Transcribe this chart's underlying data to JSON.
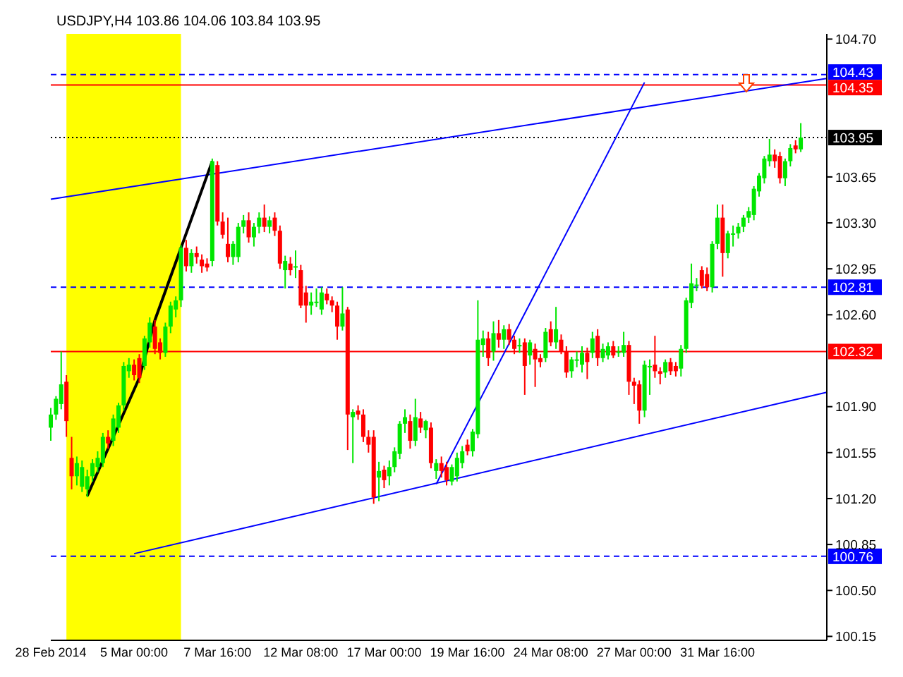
{
  "chart_data": {
    "type": "candlestick",
    "title": "USDJPY,H4 103.86 104.06 103.84 103.95",
    "categories": [
      "28 Feb 2014",
      null,
      null,
      null,
      null,
      null,
      null,
      null,
      null,
      null,
      null,
      null,
      null,
      null,
      null,
      null,
      "5 Mar 00:00",
      null,
      null,
      null,
      null,
      null,
      null,
      null,
      null,
      null,
      null,
      null,
      null,
      null,
      null,
      null,
      "7 Mar 16:00",
      null,
      null,
      null,
      null,
      null,
      null,
      null,
      null,
      null,
      null,
      null,
      null,
      null,
      null,
      null,
      "12 Mar 08:00",
      null,
      null,
      null,
      null,
      null,
      null,
      null,
      null,
      null,
      null,
      null,
      null,
      null,
      null,
      null,
      "17 Mar 00:00",
      null,
      null,
      null,
      null,
      null,
      null,
      null,
      null,
      null,
      null,
      null,
      null,
      null,
      null,
      null,
      "19 Mar 16:00",
      null,
      null,
      null,
      null,
      null,
      null,
      null,
      null,
      null,
      null,
      null,
      null,
      null,
      null,
      null,
      "24 Mar 08:00",
      null,
      null,
      null,
      null,
      null,
      null,
      null,
      null,
      null,
      null,
      null,
      null,
      null,
      null,
      null,
      "27 Mar 00:00",
      null,
      null,
      null,
      null,
      null,
      null,
      null,
      null,
      null,
      null,
      null,
      null,
      null,
      null,
      null,
      "31 Mar 16:00",
      null,
      null,
      null,
      null,
      null,
      null,
      null,
      null,
      null,
      null,
      null,
      null,
      null,
      null,
      null,
      null,
      null,
      null,
      null,
      null,
      null
    ],
    "ohlc": [
      [
        101.74,
        101.89,
        101.64,
        101.84
      ],
      [
        101.84,
        101.98,
        101.8,
        101.96
      ],
      [
        101.92,
        102.32,
        101.88,
        102.07
      ],
      [
        102.09,
        102.14,
        101.67,
        101.79
      ],
      [
        101.51,
        101.67,
        101.27,
        101.37
      ],
      [
        101.37,
        101.52,
        101.3,
        101.47
      ],
      [
        101.29,
        101.49,
        101.25,
        101.44
      ],
      [
        101.27,
        101.42,
        101.21,
        101.37
      ],
      [
        101.37,
        101.5,
        101.33,
        101.47
      ],
      [
        101.44,
        101.56,
        101.4,
        101.51
      ],
      [
        101.47,
        101.7,
        101.44,
        101.67
      ],
      [
        101.67,
        101.72,
        101.58,
        101.62
      ],
      [
        101.64,
        101.84,
        101.6,
        101.81
      ],
      [
        101.74,
        101.93,
        101.7,
        101.91
      ],
      [
        101.91,
        102.24,
        101.87,
        102.21
      ],
      [
        102.17,
        102.27,
        102.12,
        102.22
      ],
      [
        102.22,
        102.26,
        102.1,
        102.14
      ],
      [
        102.27,
        102.3,
        102.08,
        102.12
      ],
      [
        102.21,
        102.44,
        102.18,
        102.42
      ],
      [
        102.39,
        102.58,
        102.35,
        102.54
      ],
      [
        102.51,
        102.56,
        102.3,
        102.34
      ],
      [
        102.39,
        102.42,
        102.26,
        102.31
      ],
      [
        102.31,
        102.54,
        102.28,
        102.51
      ],
      [
        102.51,
        102.7,
        102.46,
        102.67
      ],
      [
        102.64,
        102.74,
        102.58,
        102.71
      ],
      [
        102.71,
        103.13,
        102.66,
        103.11
      ],
      [
        103.11,
        103.17,
        102.93,
        102.97
      ],
      [
        102.97,
        103.1,
        102.92,
        103.07
      ],
      [
        103.07,
        103.12,
        102.99,
        103.04
      ],
      [
        103.02,
        103.06,
        102.92,
        102.97
      ],
      [
        102.99,
        103.03,
        102.93,
        102.96
      ],
      [
        103.01,
        103.79,
        102.97,
        103.77
      ],
      [
        103.74,
        103.77,
        103.28,
        103.31
      ],
      [
        103.31,
        103.38,
        103.18,
        103.21
      ],
      [
        103.14,
        103.34,
        103.0,
        103.04
      ],
      [
        103.04,
        103.16,
        102.98,
        103.14
      ],
      [
        103.04,
        103.3,
        103.0,
        103.27
      ],
      [
        103.27,
        103.36,
        103.22,
        103.32
      ],
      [
        103.32,
        103.38,
        103.15,
        103.19
      ],
      [
        103.19,
        103.3,
        103.12,
        103.27
      ],
      [
        103.27,
        103.38,
        103.22,
        103.34
      ],
      [
        103.34,
        103.44,
        103.23,
        103.27
      ],
      [
        103.27,
        103.35,
        103.22,
        103.32
      ],
      [
        103.34,
        103.38,
        103.2,
        103.24
      ],
      [
        103.24,
        103.28,
        102.95,
        102.99
      ],
      [
        102.94,
        103.05,
        102.8,
        103.01
      ],
      [
        102.99,
        103.04,
        102.9,
        102.94
      ],
      [
        102.97,
        103.09,
        102.88,
        102.97
      ],
      [
        102.94,
        102.98,
        102.65,
        102.67
      ],
      [
        102.77,
        102.82,
        102.54,
        102.67
      ],
      [
        102.67,
        102.77,
        102.6,
        102.7
      ],
      [
        102.7,
        102.8,
        102.66,
        102.7
      ],
      [
        102.64,
        102.81,
        102.6,
        102.77
      ],
      [
        102.76,
        102.8,
        102.68,
        102.71
      ],
      [
        102.71,
        102.74,
        102.62,
        102.67
      ],
      [
        102.67,
        102.7,
        102.41,
        102.51
      ],
      [
        102.51,
        102.81,
        102.48,
        102.61
      ],
      [
        102.64,
        102.66,
        101.57,
        101.84
      ],
      [
        101.82,
        101.88,
        101.47,
        101.86
      ],
      [
        101.87,
        101.91,
        101.8,
        101.84
      ],
      [
        101.84,
        101.88,
        101.63,
        101.67
      ],
      [
        101.67,
        101.72,
        101.55,
        101.61
      ],
      [
        101.67,
        101.72,
        101.16,
        101.21
      ],
      [
        101.36,
        101.48,
        101.18,
        101.41
      ],
      [
        101.42,
        101.45,
        101.28,
        101.34
      ],
      [
        101.37,
        101.49,
        101.3,
        101.44
      ],
      [
        101.44,
        101.59,
        101.4,
        101.56
      ],
      [
        101.54,
        101.79,
        101.5,
        101.77
      ],
      [
        101.77,
        101.88,
        101.7,
        101.82
      ],
      [
        101.79,
        101.84,
        101.58,
        101.64
      ],
      [
        101.64,
        101.96,
        101.6,
        101.82
      ],
      [
        101.81,
        101.86,
        101.7,
        101.74
      ],
      [
        101.72,
        101.8,
        101.66,
        101.79
      ],
      [
        101.74,
        101.78,
        101.43,
        101.47
      ],
      [
        101.41,
        101.5,
        101.35,
        101.47
      ],
      [
        101.47,
        101.52,
        101.36,
        101.41
      ],
      [
        101.44,
        101.48,
        101.3,
        101.34
      ],
      [
        101.33,
        101.46,
        101.3,
        101.44
      ],
      [
        101.37,
        101.55,
        101.33,
        101.51
      ],
      [
        101.47,
        101.6,
        101.43,
        101.56
      ],
      [
        101.61,
        101.65,
        101.53,
        101.56
      ],
      [
        101.56,
        101.73,
        101.52,
        101.71
      ],
      [
        101.69,
        102.71,
        101.66,
        102.41
      ],
      [
        102.37,
        102.48,
        102.28,
        102.42
      ],
      [
        102.42,
        102.47,
        102.21,
        102.27
      ],
      [
        102.32,
        102.55,
        102.25,
        102.46
      ],
      [
        102.46,
        102.56,
        102.35,
        102.41
      ],
      [
        102.41,
        102.52,
        102.34,
        102.49
      ],
      [
        102.49,
        102.53,
        102.37,
        102.41
      ],
      [
        102.41,
        102.44,
        102.3,
        102.34
      ],
      [
        102.37,
        102.42,
        102.31,
        102.37
      ],
      [
        102.39,
        102.42,
        101.99,
        102.21
      ],
      [
        102.29,
        102.41,
        102.22,
        102.39
      ],
      [
        102.34,
        102.38,
        102.05,
        102.26
      ],
      [
        102.27,
        102.3,
        102.2,
        102.24
      ],
      [
        102.27,
        102.5,
        102.24,
        102.47
      ],
      [
        102.49,
        102.55,
        102.36,
        102.39
      ],
      [
        102.39,
        102.66,
        102.34,
        102.49
      ],
      [
        102.41,
        102.45,
        102.3,
        102.32
      ],
      [
        102.32,
        102.36,
        102.12,
        102.16
      ],
      [
        102.17,
        102.28,
        102.12,
        102.26
      ],
      [
        102.26,
        102.32,
        102.2,
        102.26
      ],
      [
        102.22,
        102.36,
        102.16,
        102.31
      ],
      [
        102.31,
        102.35,
        102.11,
        102.24
      ],
      [
        102.31,
        102.47,
        102.27,
        102.42
      ],
      [
        102.44,
        102.49,
        102.21,
        102.27
      ],
      [
        102.27,
        102.38,
        102.24,
        102.34
      ],
      [
        102.29,
        102.39,
        102.26,
        102.36
      ],
      [
        102.36,
        102.4,
        102.27,
        102.29
      ],
      [
        102.32,
        102.36,
        102.28,
        102.32
      ],
      [
        102.31,
        102.47,
        102.28,
        102.37
      ],
      [
        102.37,
        102.4,
        101.99,
        102.09
      ],
      [
        102.09,
        102.12,
        101.92,
        102.06
      ],
      [
        102.07,
        102.1,
        101.77,
        101.87
      ],
      [
        101.87,
        102.25,
        101.82,
        102.22
      ],
      [
        102.21,
        102.26,
        101.99,
        102.21
      ],
      [
        102.22,
        102.44,
        102.12,
        102.17
      ],
      [
        102.17,
        102.2,
        102.07,
        102.15
      ],
      [
        102.16,
        102.26,
        102.12,
        102.24
      ],
      [
        102.24,
        102.27,
        102.14,
        102.17
      ],
      [
        102.21,
        102.24,
        102.13,
        102.17
      ],
      [
        102.19,
        102.37,
        102.13,
        102.34
      ],
      [
        102.34,
        102.73,
        102.31,
        102.71
      ],
      [
        102.69,
        102.99,
        102.65,
        102.84
      ],
      [
        102.83,
        102.88,
        102.78,
        102.83
      ],
      [
        102.94,
        102.97,
        102.8,
        102.82
      ],
      [
        102.91,
        102.96,
        102.78,
        102.81
      ],
      [
        102.81,
        103.16,
        102.77,
        103.14
      ],
      [
        103.14,
        103.44,
        103.1,
        103.34
      ],
      [
        103.34,
        103.44,
        102.89,
        103.07
      ],
      [
        103.07,
        103.24,
        103.03,
        103.22
      ],
      [
        103.22,
        103.28,
        103.12,
        103.22
      ],
      [
        103.22,
        103.3,
        103.18,
        103.27
      ],
      [
        103.27,
        103.36,
        103.23,
        103.34
      ],
      [
        103.34,
        103.42,
        103.3,
        103.39
      ],
      [
        103.36,
        103.58,
        103.32,
        103.56
      ],
      [
        103.54,
        103.68,
        103.5,
        103.66
      ],
      [
        103.64,
        103.81,
        103.6,
        103.79
      ],
      [
        103.77,
        103.94,
        103.73,
        103.82
      ],
      [
        103.82,
        103.86,
        103.72,
        103.77
      ],
      [
        103.81,
        103.84,
        103.6,
        103.64
      ],
      [
        103.64,
        103.79,
        103.58,
        103.77
      ],
      [
        103.77,
        103.9,
        103.73,
        103.87
      ],
      [
        103.89,
        103.93,
        103.83,
        103.86
      ],
      [
        103.86,
        104.06,
        103.84,
        103.95
      ],
      null,
      null,
      null,
      null,
      null
    ],
    "series": [
      {
        "type": "line",
        "color": "#0000ff",
        "line_style": "solid",
        "values": [
          103.48,
          null,
          null,
          null,
          null,
          null,
          null,
          null,
          null,
          null,
          null,
          null,
          null,
          null,
          null,
          null,
          null,
          null,
          null,
          null,
          null,
          null,
          null,
          null,
          null,
          null,
          null,
          null,
          null,
          null,
          null,
          null,
          null,
          null,
          null,
          null,
          null,
          null,
          null,
          null,
          null,
          null,
          null,
          null,
          null,
          null,
          null,
          null,
          null,
          null,
          null,
          null,
          null,
          null,
          null,
          null,
          null,
          null,
          null,
          null,
          null,
          null,
          null,
          null,
          null,
          null,
          null,
          null,
          null,
          null,
          null,
          null,
          null,
          null,
          null,
          null,
          null,
          null,
          null,
          null,
          null,
          null,
          null,
          null,
          null,
          null,
          null,
          null,
          null,
          null,
          null,
          null,
          null,
          null,
          null,
          null,
          null,
          null,
          null,
          null,
          null,
          null,
          null,
          null,
          null,
          null,
          null,
          null,
          null,
          null,
          null,
          null,
          null,
          null,
          null,
          null,
          null,
          null,
          null,
          null,
          null,
          null,
          null,
          null,
          null,
          null,
          null,
          null,
          null,
          null,
          null,
          null,
          null,
          null,
          null,
          null,
          null,
          null,
          null,
          null,
          null,
          null,
          null,
          null,
          null,
          null,
          null,
          null,
          null,
          104.4
        ]
      },
      {
        "type": "line",
        "color": "#0000ff",
        "line_style": "solid",
        "values": [
          null,
          null,
          null,
          null,
          null,
          null,
          null,
          null,
          null,
          null,
          null,
          null,
          null,
          null,
          null,
          null,
          100.78,
          null,
          null,
          null,
          null,
          null,
          null,
          null,
          null,
          null,
          null,
          null,
          null,
          null,
          null,
          null,
          null,
          null,
          null,
          null,
          null,
          null,
          null,
          null,
          null,
          null,
          null,
          null,
          null,
          null,
          null,
          null,
          null,
          null,
          null,
          null,
          null,
          null,
          null,
          null,
          null,
          null,
          null,
          null,
          null,
          null,
          null,
          null,
          null,
          null,
          null,
          null,
          null,
          null,
          null,
          null,
          null,
          null,
          null,
          null,
          null,
          null,
          null,
          null,
          null,
          null,
          null,
          null,
          null,
          null,
          null,
          null,
          null,
          null,
          null,
          null,
          null,
          null,
          null,
          null,
          null,
          null,
          null,
          null,
          null,
          null,
          null,
          null,
          null,
          null,
          null,
          null,
          null,
          null,
          null,
          null,
          null,
          null,
          null,
          null,
          null,
          null,
          null,
          null,
          null,
          null,
          null,
          null,
          null,
          null,
          null,
          null,
          null,
          null,
          null,
          null,
          null,
          null,
          null,
          null,
          null,
          null,
          null,
          null,
          null,
          null,
          null,
          null,
          null,
          null,
          null,
          null,
          null,
          102.01
        ]
      },
      {
        "type": "line",
        "color": "#000000",
        "line_style": "solid",
        "values": [
          null,
          null,
          null,
          null,
          null,
          null,
          null,
          101.22,
          null,
          null,
          null,
          null,
          null,
          null,
          null,
          null,
          null,
          102.12,
          null,
          null,
          102.56,
          null,
          null,
          null,
          null,
          null,
          null,
          null,
          null,
          null,
          null,
          103.77,
          null,
          null,
          null,
          null,
          null,
          null,
          null,
          null,
          null,
          null,
          null,
          null,
          null,
          null,
          null,
          null,
          null,
          null,
          null,
          null,
          null,
          null,
          null,
          null,
          null,
          null,
          null,
          null,
          null,
          null,
          null,
          null,
          null,
          null,
          null,
          null,
          null,
          null,
          null,
          null,
          null,
          null,
          null,
          null,
          null,
          null,
          null,
          null,
          null,
          null,
          null,
          null,
          null,
          null,
          null,
          null,
          null,
          null,
          null,
          null,
          null,
          null,
          null,
          null,
          null,
          null,
          null,
          null,
          null,
          null,
          null,
          null,
          null,
          null,
          null,
          null,
          null,
          null,
          null,
          null,
          null,
          null,
          null,
          null,
          null,
          null,
          null,
          null,
          null,
          null,
          null,
          null,
          null,
          null,
          null,
          null,
          null,
          null,
          null,
          null,
          null,
          null,
          null,
          null,
          null,
          null,
          null,
          null,
          null,
          null,
          null,
          null,
          null,
          null,
          null,
          null,
          null,
          null
        ]
      },
      {
        "type": "line",
        "color": "#0000ff",
        "line_style": "solid",
        "values": [
          null,
          null,
          null,
          null,
          null,
          null,
          null,
          null,
          null,
          null,
          null,
          null,
          null,
          null,
          null,
          null,
          null,
          null,
          null,
          null,
          null,
          null,
          null,
          null,
          null,
          null,
          null,
          null,
          null,
          null,
          null,
          null,
          null,
          null,
          null,
          null,
          null,
          null,
          null,
          null,
          null,
          null,
          null,
          null,
          null,
          null,
          null,
          null,
          null,
          null,
          null,
          null,
          null,
          null,
          null,
          null,
          null,
          null,
          null,
          null,
          null,
          null,
          null,
          null,
          null,
          null,
          null,
          null,
          null,
          null,
          null,
          null,
          null,
          null,
          101.31,
          null,
          null,
          null,
          null,
          null,
          null,
          null,
          null,
          null,
          null,
          null,
          null,
          null,
          null,
          null,
          null,
          null,
          null,
          null,
          null,
          null,
          null,
          null,
          null,
          null,
          null,
          null,
          null,
          null,
          null,
          null,
          null,
          null,
          null,
          null,
          null,
          null,
          null,
          null,
          104.37,
          null,
          null,
          null,
          null,
          null,
          null,
          null,
          null,
          null,
          null,
          null,
          null,
          null,
          null,
          null,
          null,
          null,
          null,
          null,
          null,
          null,
          null,
          null,
          null,
          null,
          null,
          null,
          null,
          null,
          null,
          null,
          null,
          null,
          null,
          null
        ]
      }
    ],
    "ylim": [
      100.12,
      104.74
    ],
    "yticks": [
      {
        "value": 100.15,
        "label": "100.15"
      },
      {
        "value": 100.5,
        "label": "100.50"
      },
      {
        "value": 100.85,
        "label": "100.85"
      },
      {
        "value": 101.2,
        "label": "101.20"
      },
      {
        "value": 101.55,
        "label": "101.55"
      },
      {
        "value": 101.9,
        "label": "101.90"
      },
      {
        "value": 102.6,
        "label": "102.60"
      },
      {
        "value": 102.95,
        "label": "102.95"
      },
      {
        "value": 103.3,
        "label": "103.30"
      },
      {
        "value": 103.65,
        "label": "103.65"
      },
      {
        "value": 104.7,
        "label": "104.70"
      }
    ],
    "ref_lines": [
      {
        "axis": "y",
        "value": 104.43,
        "label": "104.43",
        "color": "#0000ff",
        "line_style": "dashed"
      },
      {
        "axis": "y",
        "value": 104.35,
        "label": "104.35",
        "color": "#ff0000",
        "line_style": "solid"
      },
      {
        "axis": "y",
        "value": 103.95,
        "label": "103.95",
        "color": "#000000",
        "line_style": "dotted"
      },
      {
        "axis": "y",
        "value": 102.81,
        "label": "102.81",
        "color": "#0000ff",
        "line_style": "dashed"
      },
      {
        "axis": "y",
        "value": 102.32,
        "label": "102.32",
        "color": "#ff0000",
        "line_style": "solid"
      },
      {
        "axis": "y",
        "value": 100.76,
        "label": "100.76",
        "color": "#0000ff",
        "line_style": "dashed"
      }
    ]
  }
}
